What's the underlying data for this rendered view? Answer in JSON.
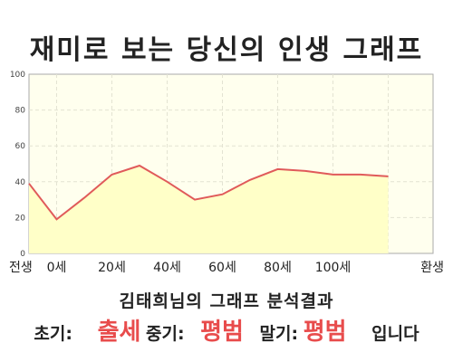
{
  "title": "재미로 보는 당신의 인생 그래프",
  "chart_data": {
    "type": "area",
    "x_labels": [
      "전생",
      "0세",
      "20세",
      "40세",
      "60세",
      "80세",
      "100세",
      "환생"
    ],
    "ylim": [
      0,
      100
    ],
    "y_ticks": [
      0,
      20,
      40,
      60,
      80,
      100
    ],
    "grid": true,
    "legend": "none",
    "series": [
      {
        "x": [
          "전생",
          "0세",
          "10세",
          "20세",
          "30세",
          "40세",
          "50세",
          "60세",
          "70세",
          "80세",
          "90세",
          "100세",
          "110세",
          "환생"
        ],
        "values": [
          39,
          19,
          31,
          44,
          49,
          40,
          30,
          33,
          41,
          47,
          46,
          44,
          44,
          43
        ]
      }
    ],
    "colors": {
      "line": "#e05a5a",
      "fill": "#ffffc8",
      "plot_bg": "#ffffee",
      "grid": "#e3e3d2"
    }
  },
  "analysis": {
    "title": "김태희님의 그래프 분석결과",
    "early_label": "초기:",
    "early_value": "출세",
    "mid_label": "중기:",
    "mid_value": "평범",
    "late_label": "말기:",
    "late_value": "평범",
    "suffix": "입니다"
  }
}
